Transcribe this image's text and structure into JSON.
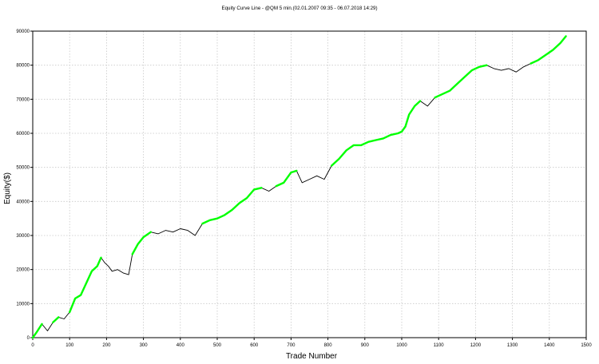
{
  "chart_data": {
    "type": "line",
    "title": "Equity Curve Line - @QM 5 min.(02.01.2007 09:35 - 06.07.2018 14:29)",
    "xlabel": "Trade Number",
    "ylabel": "Equity($)",
    "xlim": [
      0,
      1500
    ],
    "ylim": [
      0,
      90000
    ],
    "x_ticks": [
      0,
      100,
      200,
      300,
      400,
      500,
      600,
      700,
      800,
      900,
      1000,
      1100,
      1200,
      1300,
      1400,
      1500
    ],
    "y_ticks": [
      0,
      10000,
      20000,
      30000,
      40000,
      50000,
      60000,
      70000,
      80000,
      90000
    ],
    "grid": true,
    "legend": false,
    "colors": {
      "equity_line": "#000000",
      "new_high_marker": "#00ff00",
      "grid": "#c8c8c8",
      "axis": "#000000"
    },
    "series": [
      {
        "x": [
          0,
          10,
          25,
          40,
          55,
          70,
          85,
          100,
          115,
          130,
          145,
          160,
          175,
          185,
          195,
          205,
          215,
          230,
          245,
          260,
          270,
          285,
          300,
          320,
          340,
          360,
          380,
          400,
          420,
          440,
          460,
          480,
          500,
          520,
          540,
          560,
          580,
          600,
          620,
          640,
          660,
          680,
          700,
          715,
          730,
          750,
          770,
          790,
          810,
          830,
          850,
          870,
          890,
          910,
          930,
          950,
          970,
          990,
          1000,
          1010,
          1020,
          1035,
          1050,
          1070,
          1090,
          1110,
          1130,
          1150,
          1170,
          1190,
          1210,
          1230,
          1250,
          1270,
          1290,
          1310,
          1330,
          1350,
          1370,
          1390,
          1410,
          1430,
          1445
        ],
        "values": [
          0,
          1500,
          4000,
          2000,
          4500,
          6000,
          5500,
          7500,
          11500,
          12500,
          16000,
          19500,
          21000,
          23500,
          22000,
          21000,
          19500,
          20000,
          19000,
          18500,
          24500,
          27500,
          29500,
          31000,
          30500,
          31500,
          31000,
          32000,
          31500,
          30000,
          33500,
          34500,
          35000,
          36000,
          37500,
          39500,
          41000,
          43500,
          44000,
          43000,
          44500,
          45500,
          48500,
          49000,
          45500,
          46500,
          47500,
          46500,
          50500,
          52500,
          55000,
          56500,
          56500,
          57500,
          58000,
          58500,
          59500,
          60000,
          60500,
          62000,
          65500,
          68000,
          69500,
          68000,
          70500,
          71500,
          72500,
          74500,
          76500,
          78500,
          79500,
          80000,
          79000,
          78500,
          79000,
          78000,
          79500,
          80500,
          81500,
          83000,
          84500,
          86500,
          88500
        ]
      }
    ]
  }
}
